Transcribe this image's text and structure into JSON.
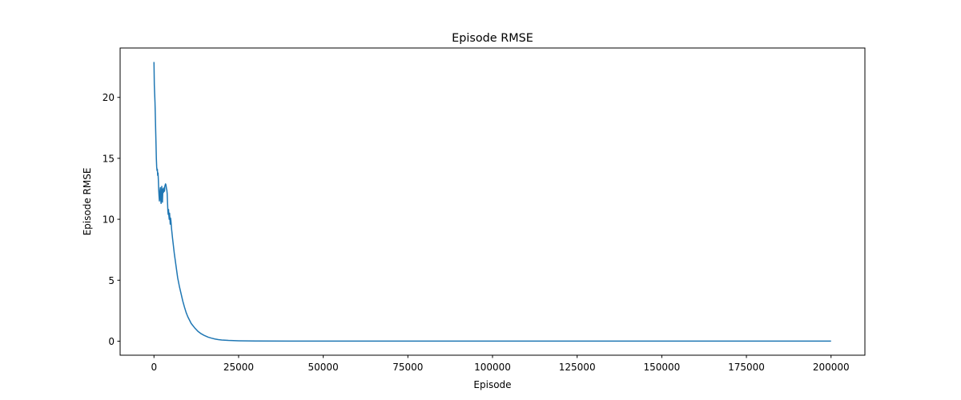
{
  "chart_data": {
    "type": "line",
    "title": "Episode RMSE",
    "xlabel": "Episode",
    "ylabel": "Episode RMSE",
    "xlim": [
      -10000,
      210000
    ],
    "ylim": [
      -1.15,
      24.05
    ],
    "grid": false,
    "xticks": [
      {
        "value": 0,
        "label": "0"
      },
      {
        "value": 25000,
        "label": "25000"
      },
      {
        "value": 50000,
        "label": "50000"
      },
      {
        "value": 75000,
        "label": "75000"
      },
      {
        "value": 100000,
        "label": "100000"
      },
      {
        "value": 125000,
        "label": "125000"
      },
      {
        "value": 150000,
        "label": "150000"
      },
      {
        "value": 175000,
        "label": "175000"
      },
      {
        "value": 200000,
        "label": "200000"
      }
    ],
    "yticks": [
      {
        "value": 0,
        "label": "0"
      },
      {
        "value": 5,
        "label": "5"
      },
      {
        "value": 10,
        "label": "10"
      },
      {
        "value": 15,
        "label": "15"
      },
      {
        "value": 20,
        "label": "20"
      }
    ],
    "series": [
      {
        "color": "#1f77b4",
        "points": [
          [
            0,
            22.9
          ],
          [
            100,
            21.0
          ],
          [
            200,
            20.3
          ],
          [
            300,
            19.6
          ],
          [
            400,
            18.5
          ],
          [
            500,
            17.3
          ],
          [
            600,
            16.2
          ],
          [
            700,
            15.0
          ],
          [
            800,
            14.3
          ],
          [
            900,
            14.0
          ],
          [
            1000,
            14.1
          ],
          [
            1100,
            13.6
          ],
          [
            1200,
            13.8
          ],
          [
            1300,
            13.2
          ],
          [
            1400,
            12.4
          ],
          [
            1500,
            11.9
          ],
          [
            1600,
            11.5
          ],
          [
            1700,
            11.8
          ],
          [
            1800,
            12.4
          ],
          [
            1900,
            12.6
          ],
          [
            2000,
            11.6
          ],
          [
            2100,
            11.3
          ],
          [
            2200,
            11.9
          ],
          [
            2300,
            12.7
          ],
          [
            2400,
            12.0
          ],
          [
            2500,
            11.4
          ],
          [
            2600,
            12.2
          ],
          [
            2700,
            12.5
          ],
          [
            2800,
            12.2
          ],
          [
            2900,
            12.4
          ],
          [
            3000,
            12.6
          ],
          [
            3100,
            12.3
          ],
          [
            3200,
            12.7
          ],
          [
            3300,
            12.8
          ],
          [
            3400,
            12.9
          ],
          [
            3500,
            12.85
          ],
          [
            3600,
            12.7
          ],
          [
            3700,
            12.5
          ],
          [
            3800,
            12.4
          ],
          [
            3900,
            12.1
          ],
          [
            4000,
            11.4
          ],
          [
            4100,
            10.7
          ],
          [
            4200,
            10.4
          ],
          [
            4300,
            10.8
          ],
          [
            4400,
            10.3
          ],
          [
            4500,
            10.0
          ],
          [
            4600,
            10.5
          ],
          [
            4700,
            10.1
          ],
          [
            4800,
            9.6
          ],
          [
            4900,
            10.1
          ],
          [
            5000,
            9.9
          ],
          [
            5200,
            9.2
          ],
          [
            5500,
            8.4
          ],
          [
            6000,
            7.2
          ],
          [
            6500,
            6.2
          ],
          [
            7000,
            5.2
          ],
          [
            7500,
            4.5
          ],
          [
            8000,
            3.9
          ],
          [
            8500,
            3.3
          ],
          [
            9000,
            2.8
          ],
          [
            9500,
            2.35
          ],
          [
            10000,
            2.0
          ],
          [
            11000,
            1.45
          ],
          [
            12000,
            1.1
          ],
          [
            13000,
            0.8
          ],
          [
            14000,
            0.6
          ],
          [
            15000,
            0.45
          ],
          [
            16000,
            0.33
          ],
          [
            17000,
            0.25
          ],
          [
            18000,
            0.18
          ],
          [
            19000,
            0.13
          ],
          [
            20000,
            0.1
          ],
          [
            22000,
            0.06
          ],
          [
            25000,
            0.035
          ],
          [
            30000,
            0.015
          ],
          [
            40000,
            0.008
          ],
          [
            60000,
            0.005
          ],
          [
            100000,
            0.004
          ],
          [
            150000,
            0.003
          ],
          [
            200000,
            0.003
          ]
        ]
      }
    ]
  }
}
